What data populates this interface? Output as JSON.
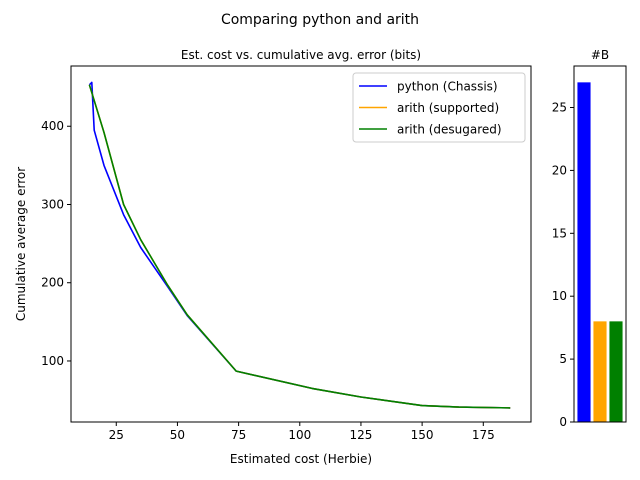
{
  "figure": {
    "suptitle": "Comparing python and arith"
  },
  "chart_data": [
    {
      "type": "line",
      "title": "Est. cost vs. cumulative avg. error (bits)",
      "xlabel": "Estimated cost (Herbie)",
      "ylabel": "Cumulative average error",
      "xlim": [
        6.5,
        194.5
      ],
      "ylim": [
        22,
        477
      ],
      "xticks": [
        25,
        50,
        75,
        100,
        125,
        150,
        175
      ],
      "yticks": [
        100,
        200,
        300,
        400
      ],
      "legend_position": "top-right",
      "series": [
        {
          "name": "python (Chassis)",
          "color": "#0000ff",
          "points": [
            [
              14,
              453
            ],
            [
              15,
              456
            ],
            [
              16,
              395
            ],
            [
              20,
              350
            ],
            [
              28,
              287
            ],
            [
              35,
              245
            ],
            [
              46,
              195
            ],
            [
              54,
              158
            ],
            [
              74,
              87
            ],
            [
              105,
              65
            ],
            [
              125,
              54
            ],
            [
              150,
              43
            ],
            [
              165,
              41
            ],
            [
              186,
              40
            ]
          ]
        },
        {
          "name": "arith (supported)",
          "color": "#ffa500",
          "points": [
            [
              14,
              453
            ],
            [
              20,
              392
            ],
            [
              28,
              300
            ],
            [
              35,
              255
            ],
            [
              46,
              197
            ],
            [
              54,
              159
            ],
            [
              74,
              87
            ],
            [
              105,
              65
            ],
            [
              125,
              54
            ],
            [
              150,
              43
            ],
            [
              165,
              41
            ],
            [
              186,
              40
            ]
          ]
        },
        {
          "name": "arith (desugared)",
          "color": "#008000",
          "points": [
            [
              14,
              453
            ],
            [
              20,
              392
            ],
            [
              28,
              300
            ],
            [
              35,
              255
            ],
            [
              46,
              197
            ],
            [
              54,
              159
            ],
            [
              74,
              87
            ],
            [
              105,
              65
            ],
            [
              125,
              54
            ],
            [
              150,
              43
            ],
            [
              165,
              41
            ],
            [
              186,
              40
            ]
          ]
        }
      ]
    },
    {
      "type": "bar",
      "title": "#B",
      "categories": [
        "python (Chassis)",
        "arith (supported)",
        "arith (desugared)"
      ],
      "values": [
        27,
        8,
        8
      ],
      "colors": [
        "#0000ff",
        "#ffa500",
        "#008000"
      ],
      "ylim": [
        0,
        28.3
      ],
      "yticks": [
        0,
        5,
        10,
        15,
        20,
        25
      ]
    }
  ]
}
